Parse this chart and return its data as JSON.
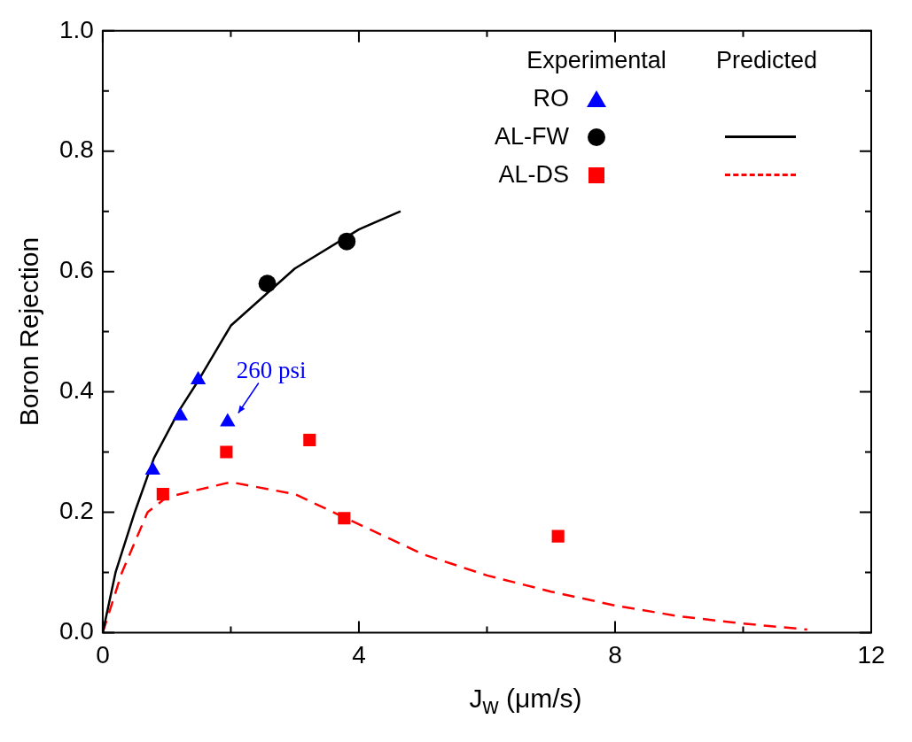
{
  "chart_data": {
    "type": "scatter",
    "xlabel": "J$_{w}$ (μm/s)",
    "ylabel": "Boron Rejection",
    "xlim": [
      0,
      12
    ],
    "xticks": [
      0,
      {
        "value": 2,
        "label": null
      },
      4,
      {
        "value": 6,
        "label": null
      },
      8,
      {
        "value": 10,
        "label": null
      },
      12
    ],
    "ylim": [
      0,
      1
    ],
    "yticks": [
      {
        "value": 0,
        "label": "0.0"
      },
      {
        "value": 0.1,
        "label": null
      },
      {
        "value": 0.2,
        "label": "0.2"
      },
      {
        "value": 0.3,
        "label": null
      },
      {
        "value": 0.4,
        "label": "0.4"
      },
      {
        "value": 0.5,
        "label": null
      },
      {
        "value": 0.6,
        "label": "0.6"
      },
      {
        "value": 0.7,
        "label": null
      },
      {
        "value": 0.8,
        "label": "0.8"
      },
      {
        "value": 0.9,
        "label": null
      },
      {
        "value": 1,
        "label": "1.0"
      }
    ],
    "grid": false,
    "legend": "top right",
    "annotations": [
      "Experimental",
      "Predicted",
      {
        "text": "260 psi",
        "x": 1.95,
        "y": 0.35
      }
    ],
    "series": [
      {
        "name": "RO",
        "marker": "triangle",
        "color": "#0000ff",
        "x": [
          0.78,
          1.21,
          1.49,
          1.95
        ],
        "values": [
          0.27,
          0.36,
          0.42,
          0.35
        ]
      },
      {
        "name": "AL-FW",
        "marker": "circle",
        "color": "#000000",
        "x": [
          2.57,
          3.81
        ],
        "values": [
          0.58,
          0.65
        ]
      },
      {
        "name": "AL-DS",
        "marker": "square",
        "color": "#ff0000",
        "x": [
          0.94,
          1.93,
          3.23,
          3.77,
          7.11
        ],
        "values": [
          0.23,
          0.3,
          0.32,
          0.19,
          0.16
        ]
      },
      {
        "type": "line",
        "marker": "none",
        "line_style": "solid",
        "color": "#000000",
        "x": [
          0,
          0.2,
          0.5,
          0.8,
          1.2,
          1.5,
          2,
          3,
          4,
          4.65
        ],
        "values": [
          0,
          0.1,
          0.2,
          0.29,
          0.37,
          0.42,
          0.51,
          0.605,
          0.67,
          0.7
        ]
      },
      {
        "type": "line",
        "marker": "none",
        "line_style": "dashed",
        "color": "#ff0000",
        "x": [
          0,
          0.3,
          0.7,
          1,
          2,
          3,
          4,
          5,
          6,
          7,
          8,
          9,
          10,
          11
        ],
        "values": [
          0,
          0.1,
          0.2,
          0.225,
          0.25,
          0.23,
          0.18,
          0.13,
          0.095,
          0.068,
          0.045,
          0.027,
          0.015,
          0.005
        ]
      }
    ]
  }
}
